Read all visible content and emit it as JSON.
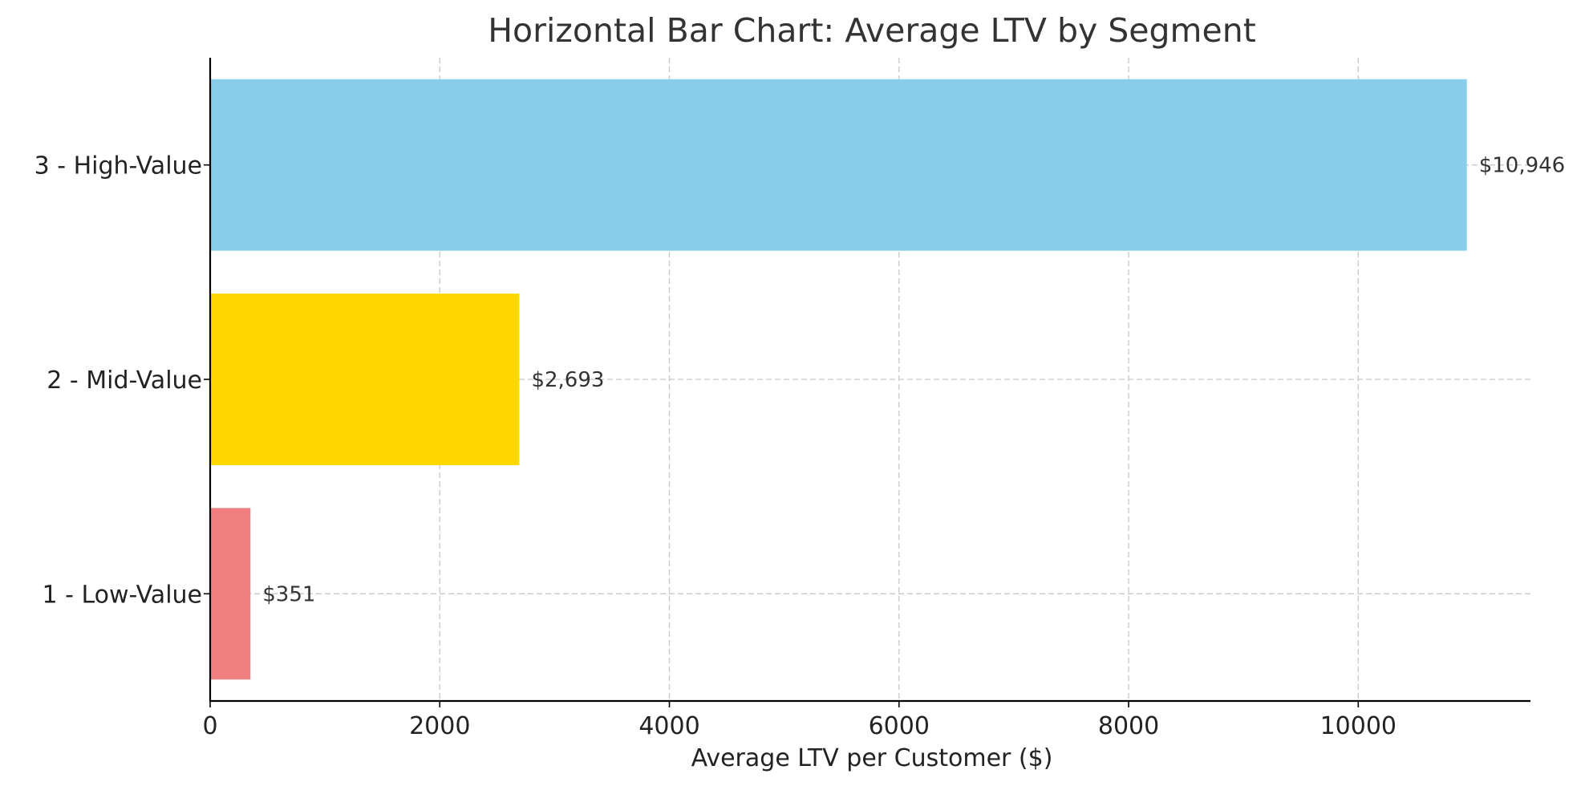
{
  "chart_data": {
    "type": "bar",
    "orientation": "horizontal",
    "title": "Horizontal Bar Chart: Average LTV by Segment",
    "xlabel": "Average LTV per Customer ($)",
    "ylabel": "",
    "categories": [
      "1 - Low-Value",
      "2 - Mid-Value",
      "3 - High-Value"
    ],
    "values": [
      351,
      2693,
      10946
    ],
    "value_labels": [
      "$351",
      "$2,693",
      "$10,946"
    ],
    "colors": [
      "#f08080",
      "#ffd700",
      "#87ceeb"
    ],
    "xlim": [
      0,
      11500
    ],
    "xticks": [
      0,
      2000,
      4000,
      6000,
      8000,
      10000
    ],
    "xtick_labels": [
      "0",
      "2000",
      "4000",
      "6000",
      "8000",
      "10000"
    ],
    "grid": true,
    "legend": "none"
  }
}
